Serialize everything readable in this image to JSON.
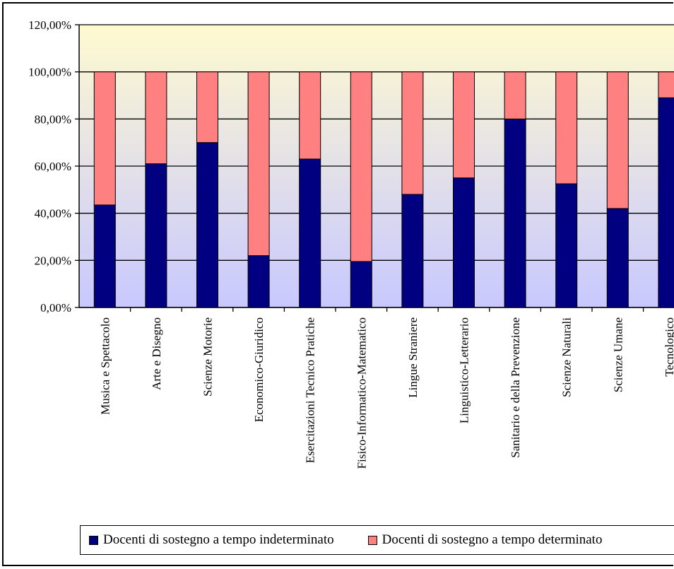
{
  "chart_data": {
    "type": "bar",
    "stacked": true,
    "title": "",
    "xlabel": "",
    "ylabel": "",
    "ylim": [
      0,
      120
    ],
    "yticks": [
      "0,00%",
      "20,00%",
      "40,00%",
      "60,00%",
      "80,00%",
      "100,00%",
      "120,00%"
    ],
    "yticks_values": [
      0,
      20,
      40,
      60,
      80,
      100,
      120
    ],
    "grid": true,
    "legend_position": "bottom",
    "categories": [
      "Musica e Spettacolo",
      "Arte e Disegno",
      "Scienze Motorie",
      "Economico-Giuridico",
      "Esercitazioni Tecnico Pratiche",
      "Fisico-Informatico-Matematico",
      "Lingue Straniere",
      "Linguistico-Letterario",
      "Sanitario e della Prevenzione",
      "Scienze Naturali",
      "Scienze Umane",
      "Tecnologico"
    ],
    "series": [
      {
        "name": "Docenti di sostegno a tempo indeterminato",
        "color": "#000080",
        "values": [
          43.5,
          61,
          70,
          22,
          63,
          19.5,
          48,
          55,
          80,
          52.5,
          42,
          89
        ]
      },
      {
        "name": "Docenti di sostegno a tempo determinato",
        "color": "#ff8080",
        "values": [
          56.5,
          39,
          30,
          78,
          37,
          80.5,
          52,
          45,
          20,
          47.5,
          58,
          11
        ]
      }
    ],
    "background_gradient": [
      "#fffad0",
      "#c8c8ff"
    ]
  }
}
